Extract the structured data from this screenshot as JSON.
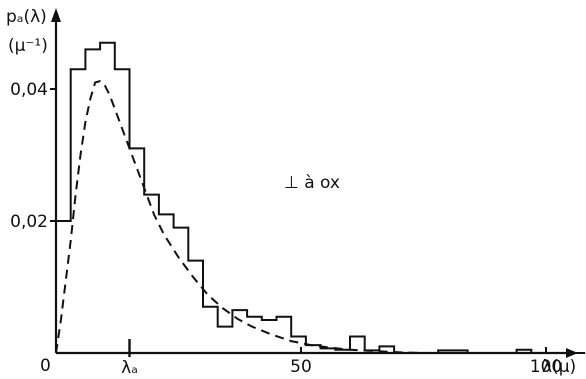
{
  "chart_data": {
    "type": "line",
    "title": "",
    "ylabel_top": "pₐ(λ)",
    "ylabel_unit": "(μ⁻¹)",
    "xlabel": "λ(μ)",
    "annotation": "⊥ à ox",
    "origin_label": "0",
    "xlim": [
      0,
      108
    ],
    "ylim": [
      0,
      0.05
    ],
    "grid": false,
    "x_ticks": [
      {
        "value": 50,
        "label": "50"
      },
      {
        "value": 100,
        "label": "100"
      }
    ],
    "y_ticks": [
      {
        "value": 0.02,
        "label": "0,02"
      },
      {
        "value": 0.04,
        "label": "0,04"
      }
    ],
    "lambda_c": {
      "value": 15,
      "label": "λₐ"
    },
    "series": [
      {
        "kind": "histogram",
        "bins": [
          {
            "x0": 0,
            "x1": 3,
            "y": 0.02
          },
          {
            "x0": 3,
            "x1": 6,
            "y": 0.043
          },
          {
            "x0": 6,
            "x1": 9,
            "y": 0.046
          },
          {
            "x0": 9,
            "x1": 12,
            "y": 0.047
          },
          {
            "x0": 12,
            "x1": 15,
            "y": 0.043
          },
          {
            "x0": 15,
            "x1": 18,
            "y": 0.031
          },
          {
            "x0": 18,
            "x1": 21,
            "y": 0.024
          },
          {
            "x0": 21,
            "x1": 24,
            "y": 0.021
          },
          {
            "x0": 24,
            "x1": 27,
            "y": 0.019
          },
          {
            "x0": 27,
            "x1": 30,
            "y": 0.014
          },
          {
            "x0": 30,
            "x1": 33,
            "y": 0.007
          },
          {
            "x0": 33,
            "x1": 36,
            "y": 0.004
          },
          {
            "x0": 36,
            "x1": 39,
            "y": 0.0065
          },
          {
            "x0": 39,
            "x1": 42,
            "y": 0.0055
          },
          {
            "x0": 42,
            "x1": 45,
            "y": 0.005
          },
          {
            "x0": 45,
            "x1": 48,
            "y": 0.0055
          },
          {
            "x0": 48,
            "x1": 51,
            "y": 0.0025
          },
          {
            "x0": 51,
            "x1": 54,
            "y": 0.0012
          },
          {
            "x0": 54,
            "x1": 57,
            "y": 0.0007
          },
          {
            "x0": 57,
            "x1": 60,
            "y": 0.0005
          },
          {
            "x0": 60,
            "x1": 63,
            "y": 0.0025
          },
          {
            "x0": 63,
            "x1": 66,
            "y": 0.0004
          },
          {
            "x0": 66,
            "x1": 69,
            "y": 0.001
          },
          {
            "x0": 69,
            "x1": 78,
            "y": 0.0
          },
          {
            "x0": 78,
            "x1": 84,
            "y": 0.0004
          },
          {
            "x0": 84,
            "x1": 94,
            "y": 0.0
          },
          {
            "x0": 94,
            "x1": 97,
            "y": 0.0005
          },
          {
            "x0": 97,
            "x1": 108,
            "y": 0.0
          }
        ]
      },
      {
        "kind": "dashed-curve",
        "points": [
          [
            0,
            0.0
          ],
          [
            1,
            0.005
          ],
          [
            2,
            0.011
          ],
          [
            3,
            0.017
          ],
          [
            4,
            0.024
          ],
          [
            5,
            0.03
          ],
          [
            6,
            0.035
          ],
          [
            7,
            0.0385
          ],
          [
            8,
            0.041
          ],
          [
            9,
            0.0412
          ],
          [
            10,
            0.0405
          ],
          [
            11,
            0.039
          ],
          [
            12,
            0.037
          ],
          [
            14,
            0.033
          ],
          [
            16,
            0.029
          ],
          [
            18,
            0.025
          ],
          [
            20,
            0.021
          ],
          [
            22,
            0.018
          ],
          [
            25,
            0.0145
          ],
          [
            28,
            0.0115
          ],
          [
            31,
            0.0088
          ],
          [
            34,
            0.0068
          ],
          [
            37,
            0.0052
          ],
          [
            40,
            0.004
          ],
          [
            44,
            0.0028
          ],
          [
            48,
            0.0018
          ],
          [
            52,
            0.0012
          ],
          [
            56,
            0.0008
          ],
          [
            60,
            0.0005
          ],
          [
            65,
            0.0003
          ],
          [
            70,
            0.0001
          ],
          [
            75,
            0.0
          ]
        ]
      }
    ]
  }
}
